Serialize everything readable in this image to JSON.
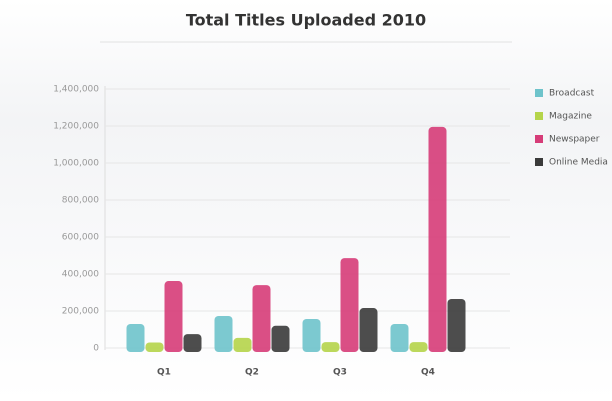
{
  "chart_data": {
    "type": "bar",
    "title": "Total Titles Uploaded 2010",
    "categories": [
      "Q1",
      "Q2",
      "Q3",
      "Q4"
    ],
    "series": [
      {
        "name": "Broadcast",
        "color": "#6ec3cb",
        "values": [
          130000,
          173000,
          157000,
          130000
        ]
      },
      {
        "name": "Magazine",
        "color": "#b5d44a",
        "values": [
          30000,
          55000,
          32000,
          32000
        ]
      },
      {
        "name": "Newspaper",
        "color": "#d63c78",
        "values": [
          362000,
          340000,
          486000,
          1195000
        ]
      },
      {
        "name": "Online Media",
        "color": "#3a3a3a",
        "values": [
          75000,
          120000,
          216000,
          265000
        ]
      }
    ],
    "ylim": [
      0,
      1400000
    ],
    "yticks": [
      0,
      {
        "value": 200000,
        "label": "200,000"
      },
      {
        "value": 400000,
        "label": "400,000"
      },
      {
        "value": 600000,
        "label": "600,000"
      },
      {
        "value": 800000,
        "label": "800,000"
      },
      {
        "value": 1000000,
        "label": "1,000,000"
      },
      {
        "value": 1200000,
        "label": "1,200,000"
      },
      {
        "value": 1400000,
        "label": "1,400,000"
      }
    ],
    "grid": true,
    "legend": "right"
  }
}
